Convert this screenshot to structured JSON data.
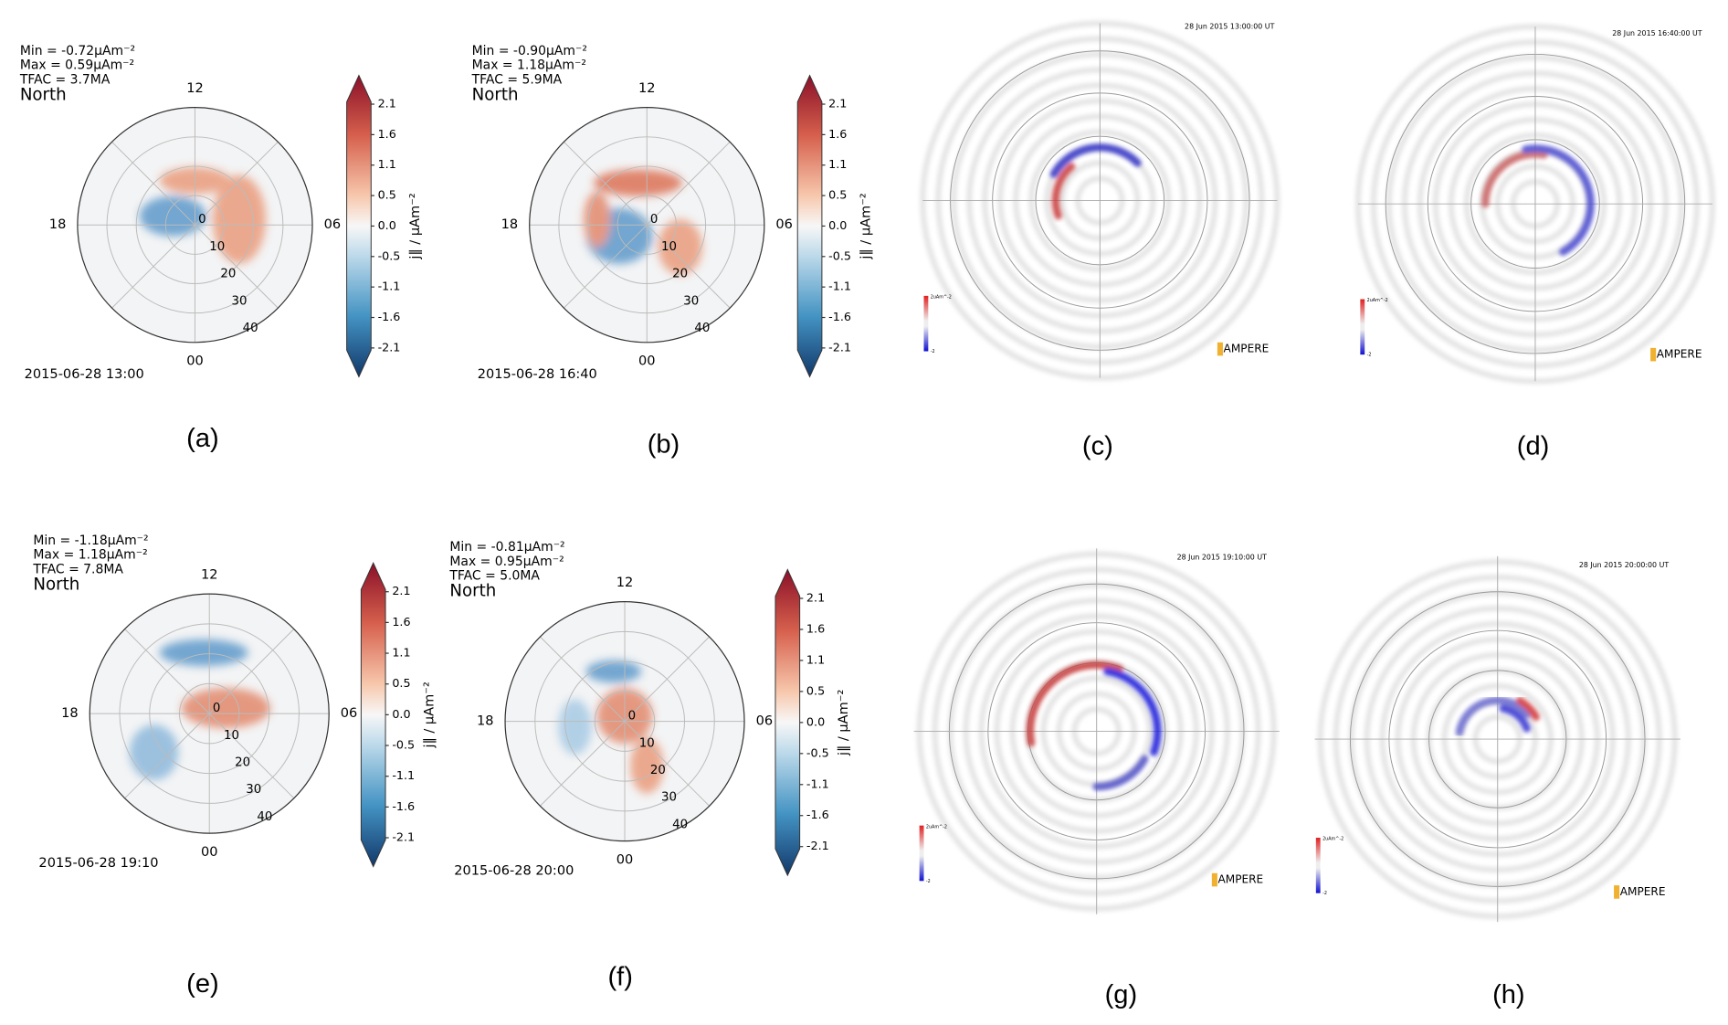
{
  "figure": {
    "polar_panels": [
      {
        "label": "(a)",
        "stats": [
          "Min = -0.72μAm⁻²",
          "Max = 0.59μAm⁻²",
          "TFAC = 3.7MA"
        ],
        "hemisphere": "North",
        "date": "2015-06-28 13:00"
      },
      {
        "label": "(b)",
        "stats": [
          "Min = -0.90μAm⁻²",
          "Max = 1.18μAm⁻²",
          "TFAC = 5.9MA"
        ],
        "hemisphere": "North",
        "date": "2015-06-28 16:40"
      },
      {
        "label": "(e)",
        "stats": [
          "Min = -1.18μAm⁻²",
          "Max = 1.18μAm⁻²",
          "TFAC = 7.8MA"
        ],
        "hemisphere": "North",
        "date": "2015-06-28 19:10"
      },
      {
        "label": "(f)",
        "stats": [
          "Min = -0.81μAm⁻²",
          "Max = 0.95μAm⁻²",
          "TFAC = 5.0MA"
        ],
        "hemisphere": "North",
        "date": "2015-06-28 20:00"
      }
    ],
    "clock_labels": [
      "12",
      "18",
      "06",
      "00"
    ],
    "lat_labels": [
      "0",
      "10",
      "20",
      "30",
      "40"
    ],
    "colorbar_ticks": [
      "2.1",
      "1.6",
      "1.1",
      "0.5",
      "0.0",
      "-0.5",
      "-1.1",
      "-1.6",
      "-2.1"
    ],
    "colorbar_label": "j∥ / μAm⁻²",
    "ampere_panels": [
      {
        "label": "(c)",
        "timestamp": "28 Jun 2015 13:00:00 UT"
      },
      {
        "label": "(d)",
        "timestamp": "28 Jun 2015 16:40:00 UT"
      },
      {
        "label": "(g)",
        "timestamp": "28 Jun 2015 19:10:00 UT"
      },
      {
        "label": "(h)",
        "timestamp": "28 Jun 2015 20:00:00 UT"
      }
    ],
    "ampere_logo": "AMPERE",
    "ampere_scale_top": "2uAm^-2",
    "ampere_scale_bottom": "-2"
  }
}
